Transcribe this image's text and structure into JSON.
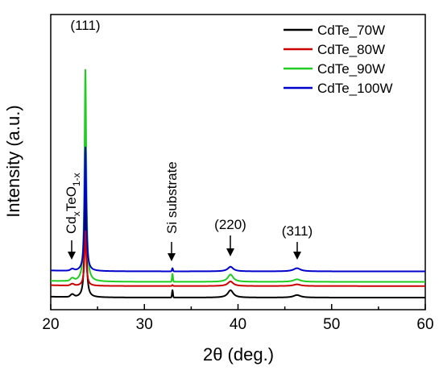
{
  "chart_data": {
    "type": "line",
    "title": "",
    "xlabel": "2θ (deg.)",
    "ylabel": "Intensity (a.u.)",
    "xlim": [
      20,
      60
    ],
    "x_ticks": [
      20,
      30,
      40,
      50,
      60
    ],
    "y_ticks_shown": false,
    "grid": false,
    "legend_position": "top-right",
    "colors": {
      "CdTe_70W": "#000000",
      "CdTe_80W": "#cc0000",
      "CdTe_90W": "#22cc22",
      "CdTe_100W": "#0000cc"
    },
    "series": [
      {
        "name": "CdTe_70W",
        "offset": 0.0,
        "main_peak_height": 5.4,
        "si_peak": 0.35,
        "peak220": 0.35,
        "peak311": 0.12,
        "cdteo_peak": 0.12
      },
      {
        "name": "CdTe_80W",
        "offset": 0.55,
        "main_peak_height": 2.6,
        "si_peak": 0.05,
        "peak220": 0.22,
        "peak311": 0.08,
        "cdteo_peak": 0.08
      },
      {
        "name": "CdTe_90W",
        "offset": 0.75,
        "main_peak_height": 10.1,
        "si_peak": 0.38,
        "peak220": 0.35,
        "peak311": 0.12,
        "cdteo_peak": 0.12
      },
      {
        "name": "CdTe_100W",
        "offset": 1.25,
        "main_peak_height": 5.9,
        "si_peak": 0.15,
        "peak220": 0.22,
        "peak311": 0.15,
        "cdteo_peak": 0.08
      }
    ],
    "annotations": [
      {
        "label": "(111)",
        "x": 23.7
      },
      {
        "label": "Si substrate",
        "x": 33.0
      },
      {
        "label": "(220)",
        "x": 39.2
      },
      {
        "label": "(311)",
        "x": 46.4
      },
      {
        "label": "CdxTeO1-x",
        "label_main": "Cd",
        "label_sub1": "x",
        "label_mid": "TeO",
        "label_sub2": "1-x",
        "x": 22.5
      }
    ]
  }
}
